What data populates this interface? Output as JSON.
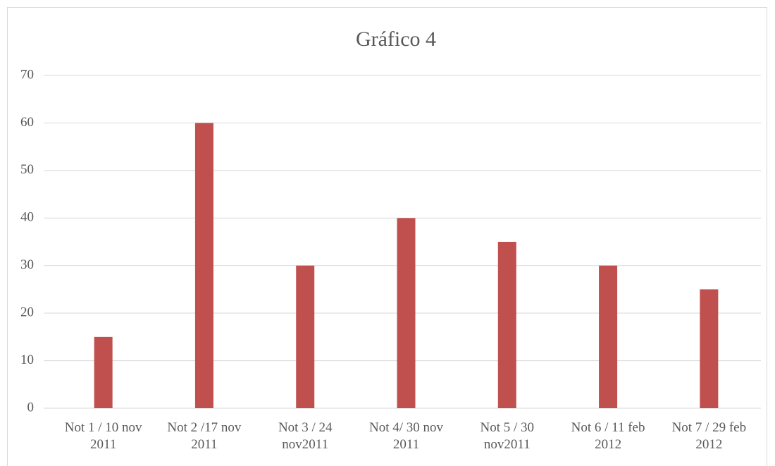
{
  "chart_data": {
    "type": "bar",
    "title": "Gráfico 4",
    "categories": [
      "Not 1 / 10 nov 2011",
      "Not 2 /17 nov 2011",
      "Not 3 / 24 nov2011",
      "Not 4/ 30 nov 2011",
      "Not 5 / 30 nov2011",
      "Not 6 / 11 feb 2012",
      "Not 7 / 29 feb 2012"
    ],
    "values": [
      15,
      60,
      30,
      40,
      35,
      30,
      25
    ],
    "color": "#c0504d",
    "ylim": [
      0,
      70
    ],
    "yticks": [
      0,
      10,
      20,
      30,
      40,
      50,
      60,
      70
    ],
    "grid": true
  }
}
